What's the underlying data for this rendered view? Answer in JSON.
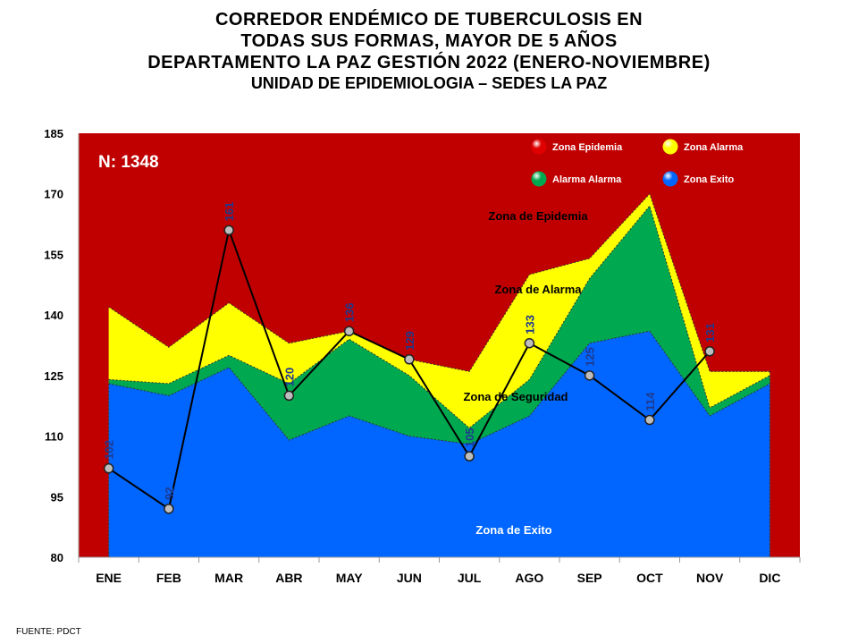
{
  "title": "CORREDOR ENDÉMICO DE TUBERCULOSIS EN\nTODAS SUS FORMAS, MAYOR DE 5 AÑOS\nDEPARTAMENTO  LA PAZ GESTIÓN 2022 (ENERO-NOVIEMBRE)",
  "subtitle": "UNIDAD DE EPIDEMIOLOGIA – SEDES LA PAZ",
  "source": "FUENTE:   PDCT",
  "chart_data": {
    "type": "area",
    "categories": [
      "ENE",
      "FEB",
      "MAR",
      "ABR",
      "MAY",
      "JUN",
      "JUL",
      "AGO",
      "SEP",
      "OCT",
      "NOV",
      "DIC"
    ],
    "ylim": [
      80,
      185
    ],
    "yticks": [
      80,
      95,
      110,
      125,
      140,
      155,
      170,
      185
    ],
    "n_label": "N: 1348",
    "zones": [
      {
        "name": "Zona de Exito",
        "color": "#0066FF",
        "values": [
          123,
          120,
          127,
          109,
          115,
          110,
          108,
          115,
          133,
          136,
          115,
          123
        ]
      },
      {
        "name": "Alarma  Alarma",
        "color": "#00A84F",
        "values": [
          124,
          123,
          130,
          123,
          134,
          125,
          112,
          124,
          149,
          167,
          117,
          125
        ]
      },
      {
        "name": "Zona  Alarma",
        "color": "#FFFF00",
        "values": [
          142,
          132,
          143,
          133,
          136,
          129,
          126,
          150,
          154,
          170,
          126,
          126
        ]
      }
    ],
    "epidemic_zone": {
      "name": "Zona Epidemia",
      "color": "#C00000"
    },
    "series": [
      {
        "name": "2022",
        "values": [
          102,
          92,
          161,
          120,
          136,
          129,
          105,
          133,
          125,
          114,
          131,
          null
        ]
      }
    ],
    "data_labels": [
      "102",
      "92",
      "161",
      "120",
      "136",
      "129",
      "105",
      "133",
      "125",
      "114",
      "131"
    ],
    "annotations": [
      {
        "text": "Zona de Epidemia"
      },
      {
        "text": "Zona de Alarma"
      },
      {
        "text": "Zona de Seguridad"
      },
      {
        "text": "Zona de Exito"
      }
    ],
    "legend": {
      "position": "top-right",
      "items": [
        {
          "label": "Zona Epidemia",
          "color": "#E00000"
        },
        {
          "label": "Zona  Alarma",
          "color": "#FFFF00"
        },
        {
          "label": "Alarma  Alarma",
          "color": "#00A84F"
        },
        {
          "label": "Zona Exito",
          "color": "#0066FF"
        }
      ]
    }
  }
}
